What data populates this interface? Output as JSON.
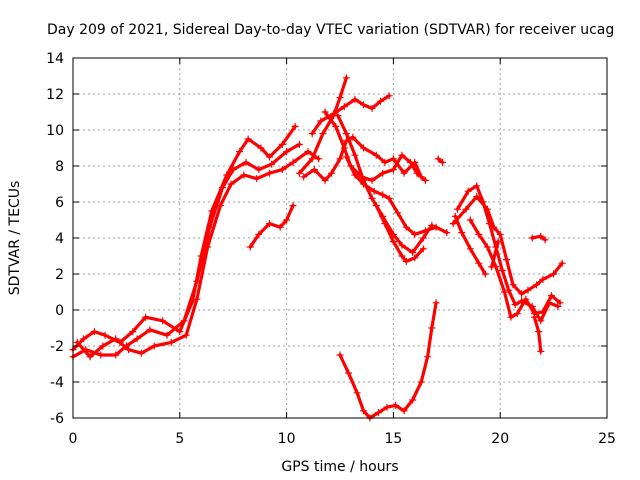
{
  "chart_data": {
    "type": "scatter",
    "title": "Day 209 of 2021, Sidereal Day-to-day VTEC variation (SDTVAR) for receiver ucag",
    "xlabel": "GPS time / hours",
    "ylabel": "SDTVAR / TECUs",
    "xlim": [
      0,
      25
    ],
    "ylim": [
      -6,
      14
    ],
    "xticks": [
      0,
      5,
      10,
      15,
      20,
      25
    ],
    "yticks": [
      -6,
      -4,
      -2,
      0,
      2,
      4,
      6,
      8,
      10,
      12,
      14
    ],
    "grid": true,
    "marker": "plus",
    "color": "#ff0000",
    "series": [
      {
        "name": "track-1",
        "points": [
          [
            0,
            -2.2
          ],
          [
            0.5,
            -1.6
          ],
          [
            1,
            -1.2
          ],
          [
            1.5,
            -1.4
          ],
          [
            2.2,
            -1.8
          ],
          [
            2.8,
            -1.2
          ],
          [
            3.4,
            -0.4
          ],
          [
            4.2,
            -0.6
          ],
          [
            5,
            -1.2
          ],
          [
            5.6,
            0.5
          ],
          [
            6,
            3
          ],
          [
            6.5,
            5.5
          ],
          [
            7.2,
            7.5
          ],
          [
            7.8,
            8.8
          ],
          [
            8.2,
            9.5
          ],
          [
            8.8,
            9
          ],
          [
            9.2,
            8.5
          ],
          [
            9.8,
            9.2
          ],
          [
            10.4,
            10.2
          ]
        ]
      },
      {
        "name": "track-2",
        "points": [
          [
            0,
            -2.6
          ],
          [
            0.6,
            -2.2
          ],
          [
            1.3,
            -2.5
          ],
          [
            2,
            -2.5
          ],
          [
            2.5,
            -2
          ],
          [
            3,
            -1.6
          ],
          [
            3.6,
            -1.1
          ],
          [
            4.4,
            -1.4
          ],
          [
            5.2,
            -0.6
          ],
          [
            5.8,
            1.6
          ],
          [
            6.4,
            4.6
          ],
          [
            7,
            6.8
          ],
          [
            7.5,
            7.8
          ],
          [
            8.1,
            8.2
          ],
          [
            8.7,
            7.8
          ],
          [
            9.3,
            8.1
          ],
          [
            10,
            8.8
          ],
          [
            10.6,
            9.2
          ]
        ]
      },
      {
        "name": "track-3",
        "points": [
          [
            0.2,
            -1.8
          ],
          [
            0.8,
            -2.6
          ],
          [
            1.4,
            -2
          ],
          [
            2,
            -1.6
          ],
          [
            2.6,
            -2.2
          ],
          [
            3.2,
            -2.4
          ],
          [
            3.8,
            -2
          ],
          [
            4.6,
            -1.8
          ],
          [
            5.3,
            -1.4
          ],
          [
            5.8,
            0.6
          ],
          [
            6.3,
            3.5
          ],
          [
            6.9,
            5.8
          ],
          [
            7.4,
            7
          ],
          [
            8,
            7.5
          ],
          [
            8.6,
            7.3
          ],
          [
            9.2,
            7.6
          ],
          [
            9.8,
            7.8
          ],
          [
            10.3,
            8.2
          ],
          [
            11,
            8.8
          ],
          [
            11.5,
            8.4
          ]
        ]
      },
      {
        "name": "track-4",
        "points": [
          [
            8.3,
            3.5
          ],
          [
            8.7,
            4.2
          ],
          [
            9.2,
            4.8
          ],
          [
            9.7,
            4.6
          ],
          [
            10,
            5
          ],
          [
            10.3,
            5.8
          ]
        ]
      },
      {
        "name": "track-5",
        "points": [
          [
            10.6,
            7.6
          ],
          [
            11.2,
            8.4
          ],
          [
            11.7,
            9.8
          ],
          [
            12.2,
            10.8
          ],
          [
            12.5,
            11.8
          ],
          [
            12.8,
            12.9
          ]
        ]
      },
      {
        "name": "track-6",
        "points": [
          [
            11.2,
            9.8
          ],
          [
            11.6,
            10.5
          ],
          [
            12.2,
            10.9
          ],
          [
            12.7,
            11.3
          ],
          [
            13.2,
            11.7
          ],
          [
            13.6,
            11.4
          ],
          [
            14,
            11.2
          ],
          [
            14.4,
            11.6
          ],
          [
            14.8,
            11.9
          ]
        ]
      },
      {
        "name": "track-7",
        "points": [
          [
            10.8,
            7.4
          ],
          [
            11.3,
            7.8
          ],
          [
            11.8,
            7.2
          ],
          [
            12.1,
            7.6
          ],
          [
            12.5,
            8.4
          ],
          [
            12.8,
            9.4
          ],
          [
            13.1,
            9.6
          ],
          [
            13.6,
            9
          ],
          [
            14.2,
            8.6
          ],
          [
            14.6,
            8.2
          ],
          [
            15,
            8.4
          ],
          [
            15.5,
            7.6
          ],
          [
            16,
            8.2
          ],
          [
            16.3,
            7.4
          ]
        ]
      },
      {
        "name": "track-8",
        "points": [
          [
            11.8,
            11
          ],
          [
            12.3,
            10.2
          ],
          [
            12.7,
            9
          ],
          [
            13,
            8
          ],
          [
            13.5,
            7.4
          ],
          [
            14,
            7.2
          ],
          [
            14.5,
            7.6
          ],
          [
            15,
            7.8
          ],
          [
            15.4,
            8.6
          ],
          [
            15.8,
            8.2
          ],
          [
            16.1,
            7.6
          ],
          [
            16.5,
            7.2
          ]
        ]
      },
      {
        "name": "track-9",
        "points": [
          [
            12.8,
            8.5
          ],
          [
            13.2,
            7.5
          ],
          [
            13.6,
            7
          ],
          [
            14.1,
            6.6
          ],
          [
            14.5,
            6.4
          ],
          [
            14.8,
            6.2
          ],
          [
            15.2,
            5.4
          ],
          [
            15.6,
            4.6
          ],
          [
            16,
            4.2
          ],
          [
            16.5,
            4.4
          ],
          [
            17,
            4.6
          ],
          [
            17.5,
            4.3
          ]
        ]
      },
      {
        "name": "track-10",
        "points": [
          [
            12.4,
            10.8
          ],
          [
            12.8,
            9.8
          ],
          [
            13.2,
            8.6
          ],
          [
            13.6,
            7.2
          ],
          [
            14,
            6.2
          ],
          [
            14.5,
            5.2
          ],
          [
            15,
            4.2
          ],
          [
            15.4,
            3.6
          ],
          [
            15.9,
            3.2
          ],
          [
            16.4,
            4
          ],
          [
            16.8,
            4.7
          ]
        ]
      },
      {
        "name": "track-11",
        "points": [
          [
            14.2,
            5.8
          ],
          [
            14.6,
            4.8
          ],
          [
            15,
            3.8
          ],
          [
            15.4,
            3
          ],
          [
            15.6,
            2.7
          ],
          [
            16,
            2.9
          ],
          [
            16.4,
            3.4
          ]
        ]
      },
      {
        "name": "track-12",
        "points": [
          [
            12.5,
            -2.5
          ],
          [
            12.9,
            -3.5
          ],
          [
            13.3,
            -4.6
          ],
          [
            13.6,
            -5.6
          ],
          [
            13.9,
            -6
          ],
          [
            14.3,
            -5.7
          ],
          [
            14.7,
            -5.4
          ],
          [
            15.1,
            -5.3
          ],
          [
            15.5,
            -5.6
          ],
          [
            15.9,
            -5
          ],
          [
            16.3,
            -4
          ],
          [
            16.6,
            -2.6
          ],
          [
            16.8,
            -1
          ],
          [
            17,
            0.4
          ]
        ]
      },
      {
        "name": "track-13",
        "points": [
          [
            17.1,
            8.4
          ],
          [
            17.3,
            8.2
          ]
        ]
      },
      {
        "name": "track-14",
        "points": [
          [
            17.8,
            4.8
          ],
          [
            18.4,
            5.6
          ],
          [
            18.9,
            6.3
          ],
          [
            19.4,
            5.6
          ],
          [
            19.7,
            4.6
          ],
          [
            20,
            4.2
          ],
          [
            20.3,
            2.8
          ],
          [
            20.6,
            1.4
          ],
          [
            21,
            0.9
          ],
          [
            21.3,
            1.1
          ],
          [
            21.7,
            1.4
          ],
          [
            22,
            1.7
          ],
          [
            22.5,
            2
          ],
          [
            22.9,
            2.6
          ]
        ]
      },
      {
        "name": "track-15",
        "points": [
          [
            18,
            5.6
          ],
          [
            18.5,
            6.6
          ],
          [
            18.9,
            6.9
          ],
          [
            19.2,
            6
          ],
          [
            19.5,
            4.8
          ],
          [
            19.8,
            3.5
          ],
          [
            20.1,
            2.2
          ],
          [
            20.4,
            1.1
          ],
          [
            20.7,
            0.3
          ],
          [
            21,
            0.5
          ],
          [
            21.5,
            0.2
          ],
          [
            21.9,
            -0.6
          ],
          [
            22.3,
            0.4
          ],
          [
            22.7,
            0.2
          ]
        ]
      },
      {
        "name": "track-16",
        "points": [
          [
            18.6,
            5
          ],
          [
            19,
            4.2
          ],
          [
            19.4,
            3.5
          ],
          [
            19.8,
            2.4
          ],
          [
            20.2,
            1
          ],
          [
            20.5,
            -0.4
          ],
          [
            20.8,
            -0.2
          ],
          [
            21.2,
            0.6
          ],
          [
            21.6,
            -0.2
          ],
          [
            22,
            -0.1
          ],
          [
            22.4,
            0.8
          ],
          [
            22.8,
            0.4
          ]
        ]
      },
      {
        "name": "track-17",
        "points": [
          [
            17.9,
            5.2
          ],
          [
            18.2,
            4.3
          ],
          [
            18.6,
            3.4
          ],
          [
            19,
            2.6
          ],
          [
            19.3,
            2
          ]
        ]
      },
      {
        "name": "track-18",
        "points": [
          [
            21.5,
            4
          ],
          [
            21.9,
            4.1
          ],
          [
            22.1,
            3.9
          ]
        ]
      },
      {
        "name": "track-19",
        "points": [
          [
            21.6,
            -0.4
          ],
          [
            21.8,
            -1.2
          ],
          [
            21.9,
            -2.3
          ]
        ]
      },
      {
        "name": "track-20",
        "points": [
          [
            19.6,
            2.4
          ],
          [
            19.9,
            3.8
          ]
        ]
      }
    ]
  }
}
